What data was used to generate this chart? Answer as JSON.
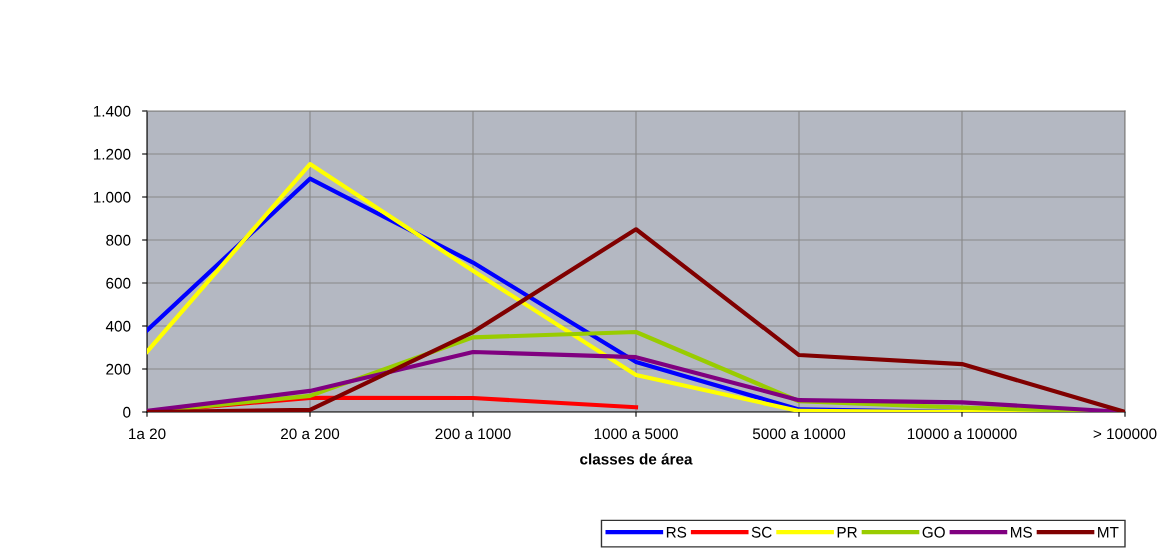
{
  "chart_data": {
    "type": "line",
    "xlabel": "classes de área",
    "categories": [
      "1a 20",
      "20 a 200",
      "200 a 1000",
      "1000 a 5000",
      "5000 a 10000",
      "10000 a 100000",
      "> 100000"
    ],
    "ylim": [
      0,
      1400
    ],
    "yticks": [
      0,
      200,
      400,
      600,
      800,
      {
        "value": 1000,
        "label": "1.000"
      },
      {
        "value": 1200,
        "label": "1.200"
      },
      {
        "value": 1400,
        "label": "1.400"
      }
    ],
    "grid": true,
    "legend": "bottom right",
    "marker": "none",
    "line_style": "solid",
    "series": [
      {
        "name": "RS",
        "color": "#0000ff",
        "values": [
          380,
          1085,
          695,
          233,
          12,
          0,
          0
        ]
      },
      {
        "name": "SC",
        "color": "#ff0000",
        "values": [
          0,
          66,
          65,
          22,
          null,
          0,
          0
        ]
      },
      {
        "name": "PR",
        "color": "#ffff00",
        "values": [
          280,
          1153,
          657,
          172,
          5,
          0,
          0
        ]
      },
      {
        "name": "GO",
        "color": "#99cc00",
        "values": [
          0,
          75,
          347,
          372,
          50,
          20,
          0
        ]
      },
      {
        "name": "MS",
        "color": "#800080",
        "values": [
          5,
          98,
          279,
          255,
          55,
          45,
          0
        ]
      },
      {
        "name": "MT",
        "color": "#800000",
        "values": [
          0,
          10,
          372,
          850,
          265,
          223,
          0
        ]
      }
    ]
  }
}
